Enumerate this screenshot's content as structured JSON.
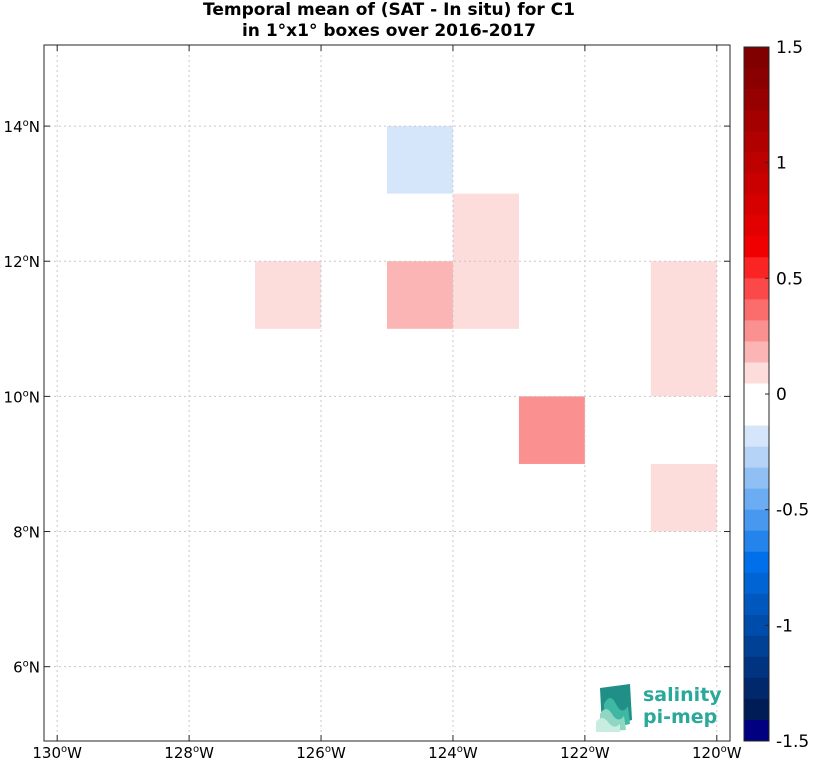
{
  "chart_data": {
    "type": "heatmap",
    "title": "Temporal mean of (SAT - In situ) for C1",
    "subtitle": "in 1°x1° boxes over 2016-2017",
    "xlim": [
      -130.2,
      -119.8
    ],
    "ylim": [
      4.9,
      15.2
    ],
    "x_ticks": [
      {
        "value": -130,
        "label": "130°W"
      },
      {
        "value": -128,
        "label": "128°W"
      },
      {
        "value": -126,
        "label": "126°W"
      },
      {
        "value": -124,
        "label": "124°W"
      },
      {
        "value": -122,
        "label": "122°W"
      },
      {
        "value": -120,
        "label": "120°W"
      }
    ],
    "y_ticks": [
      {
        "value": 6,
        "label": "6°N"
      },
      {
        "value": 8,
        "label": "8°N"
      },
      {
        "value": 10,
        "label": "10°N"
      },
      {
        "value": 12,
        "label": "12°N"
      },
      {
        "value": 14,
        "label": "14°N"
      }
    ],
    "grid": true,
    "cells": [
      {
        "lon": [
          -125,
          -124
        ],
        "lat": [
          13,
          14
        ],
        "value": -0.1,
        "color": "#d6e6fa"
      },
      {
        "lon": [
          -124,
          -123
        ],
        "lat": [
          11,
          13
        ],
        "value": 0.1,
        "color": "#fddcdc"
      },
      {
        "lon": [
          -125,
          -124
        ],
        "lat": [
          11,
          12
        ],
        "value": 0.25,
        "color": "#fbb5b5"
      },
      {
        "lon": [
          -127,
          -126
        ],
        "lat": [
          11,
          12
        ],
        "value": 0.1,
        "color": "#fddcdc"
      },
      {
        "lon": [
          -121,
          -120
        ],
        "lat": [
          10,
          12
        ],
        "value": 0.1,
        "color": "#fddcdc"
      },
      {
        "lon": [
          -123,
          -122
        ],
        "lat": [
          9,
          10
        ],
        "value": 0.35,
        "color": "#fb9090"
      },
      {
        "lon": [
          -121,
          -120
        ],
        "lat": [
          8,
          9
        ],
        "value": 0.1,
        "color": "#fddcdc"
      }
    ],
    "colorbar": {
      "range": [
        -1.5,
        1.5
      ],
      "ticks": [
        {
          "value": 1.5,
          "label": "1.5"
        },
        {
          "value": 1,
          "label": "1"
        },
        {
          "value": 0.5,
          "label": "0.5"
        },
        {
          "value": 0,
          "label": "0"
        },
        {
          "value": -0.5,
          "label": "-0.5"
        },
        {
          "value": -1,
          "label": "-1"
        },
        {
          "value": -1.5,
          "label": "-1.5"
        }
      ],
      "colors": [
        "#800000",
        "#8a0000",
        "#970000",
        "#a40000",
        "#b00000",
        "#bd0000",
        "#ca0000",
        "#d60000",
        "#e30000",
        "#f00000",
        "#fb2424",
        "#fb4848",
        "#fb6c6c",
        "#fb9090",
        "#fbb5b5",
        "#fddcdc",
        "#ffffff",
        "#ffffff",
        "#d6e6fa",
        "#b5d3f7",
        "#90bff4",
        "#6cacf2",
        "#4898ef",
        "#2484ec",
        "#0070ea",
        "#0064d4",
        "#0058bf",
        "#004caa",
        "#004095",
        "#003480",
        "#00286b",
        "#001c56",
        "#000080"
      ]
    }
  },
  "logo": {
    "line1": "salinity",
    "line2": "pi-mep"
  }
}
